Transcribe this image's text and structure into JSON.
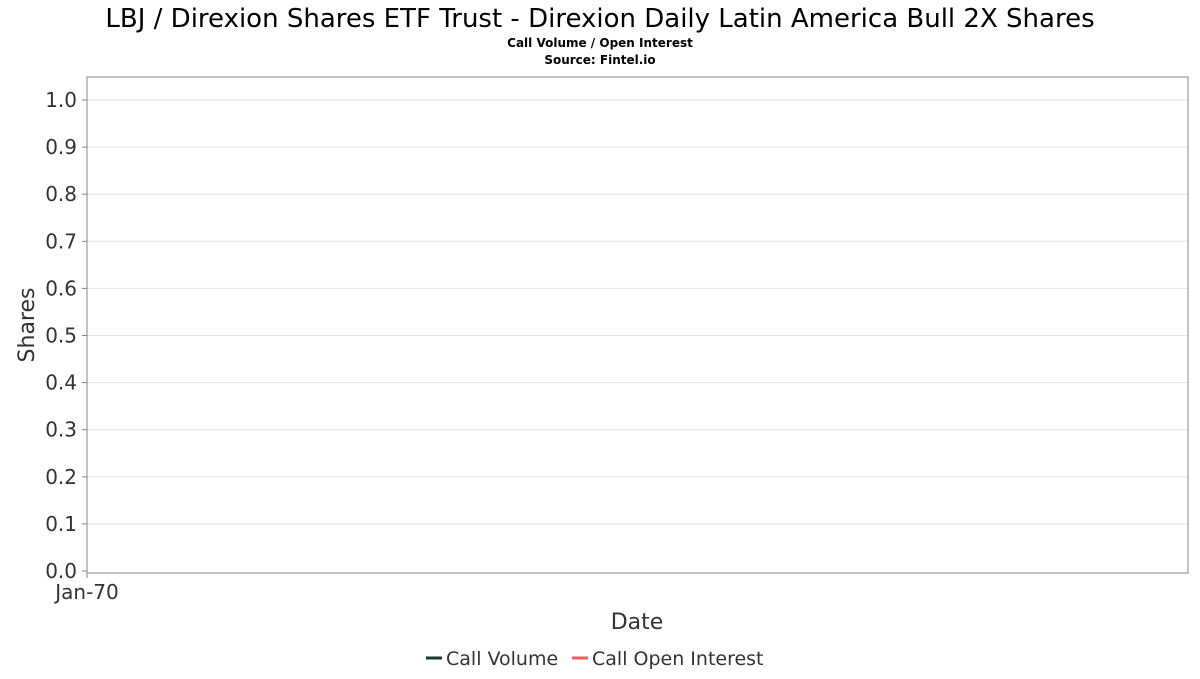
{
  "chart_data": {
    "type": "line",
    "title": "LBJ / Direxion Shares ETF Trust - Direxion Daily Latin America Bull 2X Shares",
    "subtitle": "Call Volume / Open Interest",
    "source": "Source: Fintel.io",
    "xlabel": "Date",
    "ylabel": "Shares",
    "ylim": [
      0,
      1.05
    ],
    "y_ticks": [
      "0.0",
      "0.1",
      "0.2",
      "0.3",
      "0.4",
      "0.5",
      "0.6",
      "0.7",
      "0.8",
      "0.9",
      "1.0"
    ],
    "x_ticks": [
      "Jan-70"
    ],
    "grid": true,
    "legend_position": "bottom",
    "series": [
      {
        "name": "Call Volume",
        "color": "#1b3a2a",
        "values": []
      },
      {
        "name": "Call Open Interest",
        "color": "#f25c5c",
        "values": []
      }
    ]
  }
}
